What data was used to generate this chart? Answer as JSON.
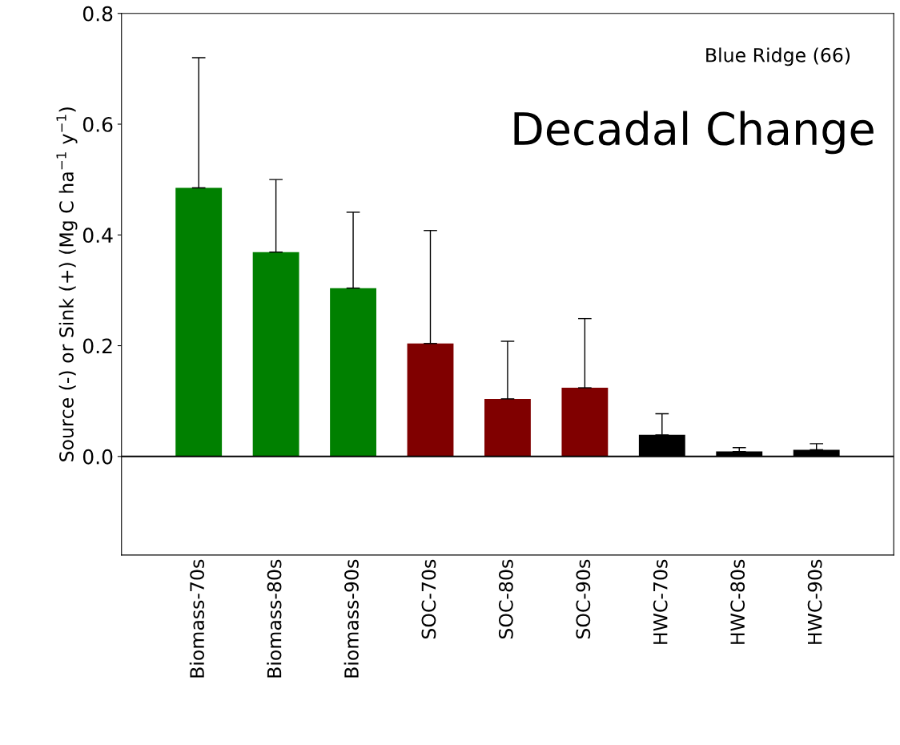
{
  "chart_data": {
    "type": "bar",
    "title": "Decadal Change",
    "ylabel": "Source (-) or Sink (+) (Mg C ha$^{−1}$ y$^{−1}$)",
    "categories": [
      "Biomass-70s",
      "Biomass-80s",
      "Biomass-90s",
      "SOC-70s",
      "SOC-80s",
      "SOC-90s",
      "HWC-70s",
      "HWC-80s",
      "HWC-90s"
    ],
    "values": [
      0.485,
      0.369,
      0.304,
      0.204,
      0.104,
      0.124,
      0.039,
      0.009,
      0.012
    ],
    "errors": [
      [
        0.485,
        0.72
      ],
      [
        0.369,
        0.5
      ],
      [
        0.304,
        0.441
      ],
      [
        0.204,
        0.408
      ],
      [
        0.104,
        0.208
      ],
      [
        0.124,
        0.249
      ],
      [
        0.039,
        0.077
      ],
      [
        0.009,
        0.016
      ],
      [
        0.012,
        0.023
      ]
    ],
    "colors": [
      "#008000",
      "#008000",
      "#008000",
      "#800000",
      "#800000",
      "#800000",
      "#000000",
      "#000000",
      "#000000"
    ],
    "ylim": [
      -0.178,
      0.8
    ],
    "yticks": [
      {
        "value": 0,
        "label": "0.0"
      },
      0.2,
      0.4,
      0.6,
      0.8
    ],
    "ref_lines": [
      {
        "axis": "y",
        "value": 0,
        "color": "#000000"
      }
    ],
    "annotations": [
      "Blue Ridge (66)"
    ],
    "grid": false,
    "legend": false
  }
}
